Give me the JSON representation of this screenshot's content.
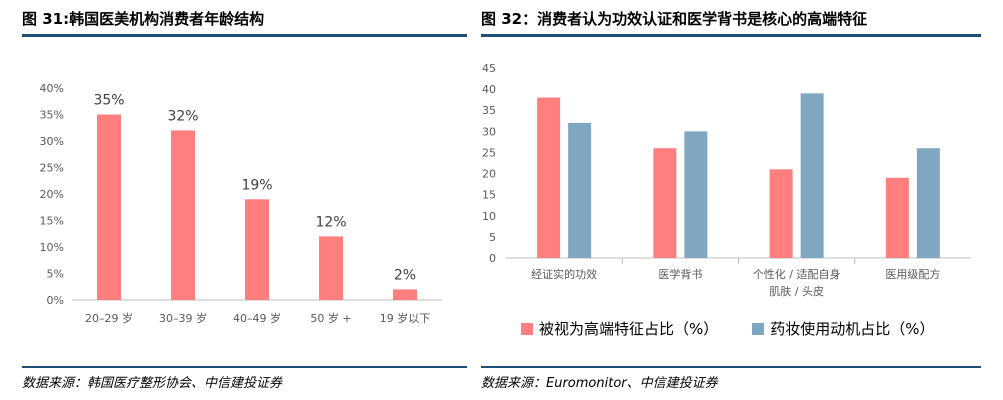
{
  "left": {
    "title": "图 31:韩国医美机构消费者年龄结构",
    "source": "数据来源：韩国医疗整形协会、中信建投证券",
    "bar_color": "#ff7f7f"
  },
  "right": {
    "title": "图 32：消费者认为功效认证和医学背书是核心的高端特征",
    "source": "数据来源：Euromonitor、中信建投证券",
    "series_colors": [
      "#ff7f7f",
      "#7fa7c2"
    ]
  },
  "chart_data": [
    {
      "type": "bar",
      "title": "图 31:韩国医美机构消费者年龄结构",
      "categories": [
        "20–29 岁",
        "30–39 岁",
        "40–49 岁",
        "50 岁 +",
        "19 岁以下"
      ],
      "values": [
        35,
        32,
        19,
        12,
        2
      ],
      "data_labels": [
        "35%",
        "32%",
        "19%",
        "12%",
        "2%"
      ],
      "ylim": [
        0,
        40
      ],
      "yticks": [
        "0%",
        "5%",
        "10%",
        "15%",
        "20%",
        "25%",
        "30%",
        "35%",
        "40%"
      ],
      "grid": false,
      "legend": "none"
    },
    {
      "type": "bar",
      "title": "图 32：消费者认为功效认证和医学背书是核心的高端特征",
      "categories": [
        [
          "经证实的功效"
        ],
        [
          "医学背书"
        ],
        [
          "个性化 / 适配自身",
          "肌肤 / 头皮"
        ],
        [
          "医用级配方"
        ]
      ],
      "series": [
        {
          "name": "被视为高端特征占比（%）",
          "values": [
            38,
            26,
            21,
            19
          ]
        },
        {
          "name": "药妆使用动机占比（%）",
          "values": [
            32,
            30,
            39,
            26
          ]
        }
      ],
      "ylim": [
        0,
        45
      ],
      "yticks": [
        "0",
        "5",
        "10",
        "15",
        "20",
        "25",
        "30",
        "35",
        "40",
        "45"
      ],
      "grid": false,
      "legend": "bottom"
    }
  ]
}
